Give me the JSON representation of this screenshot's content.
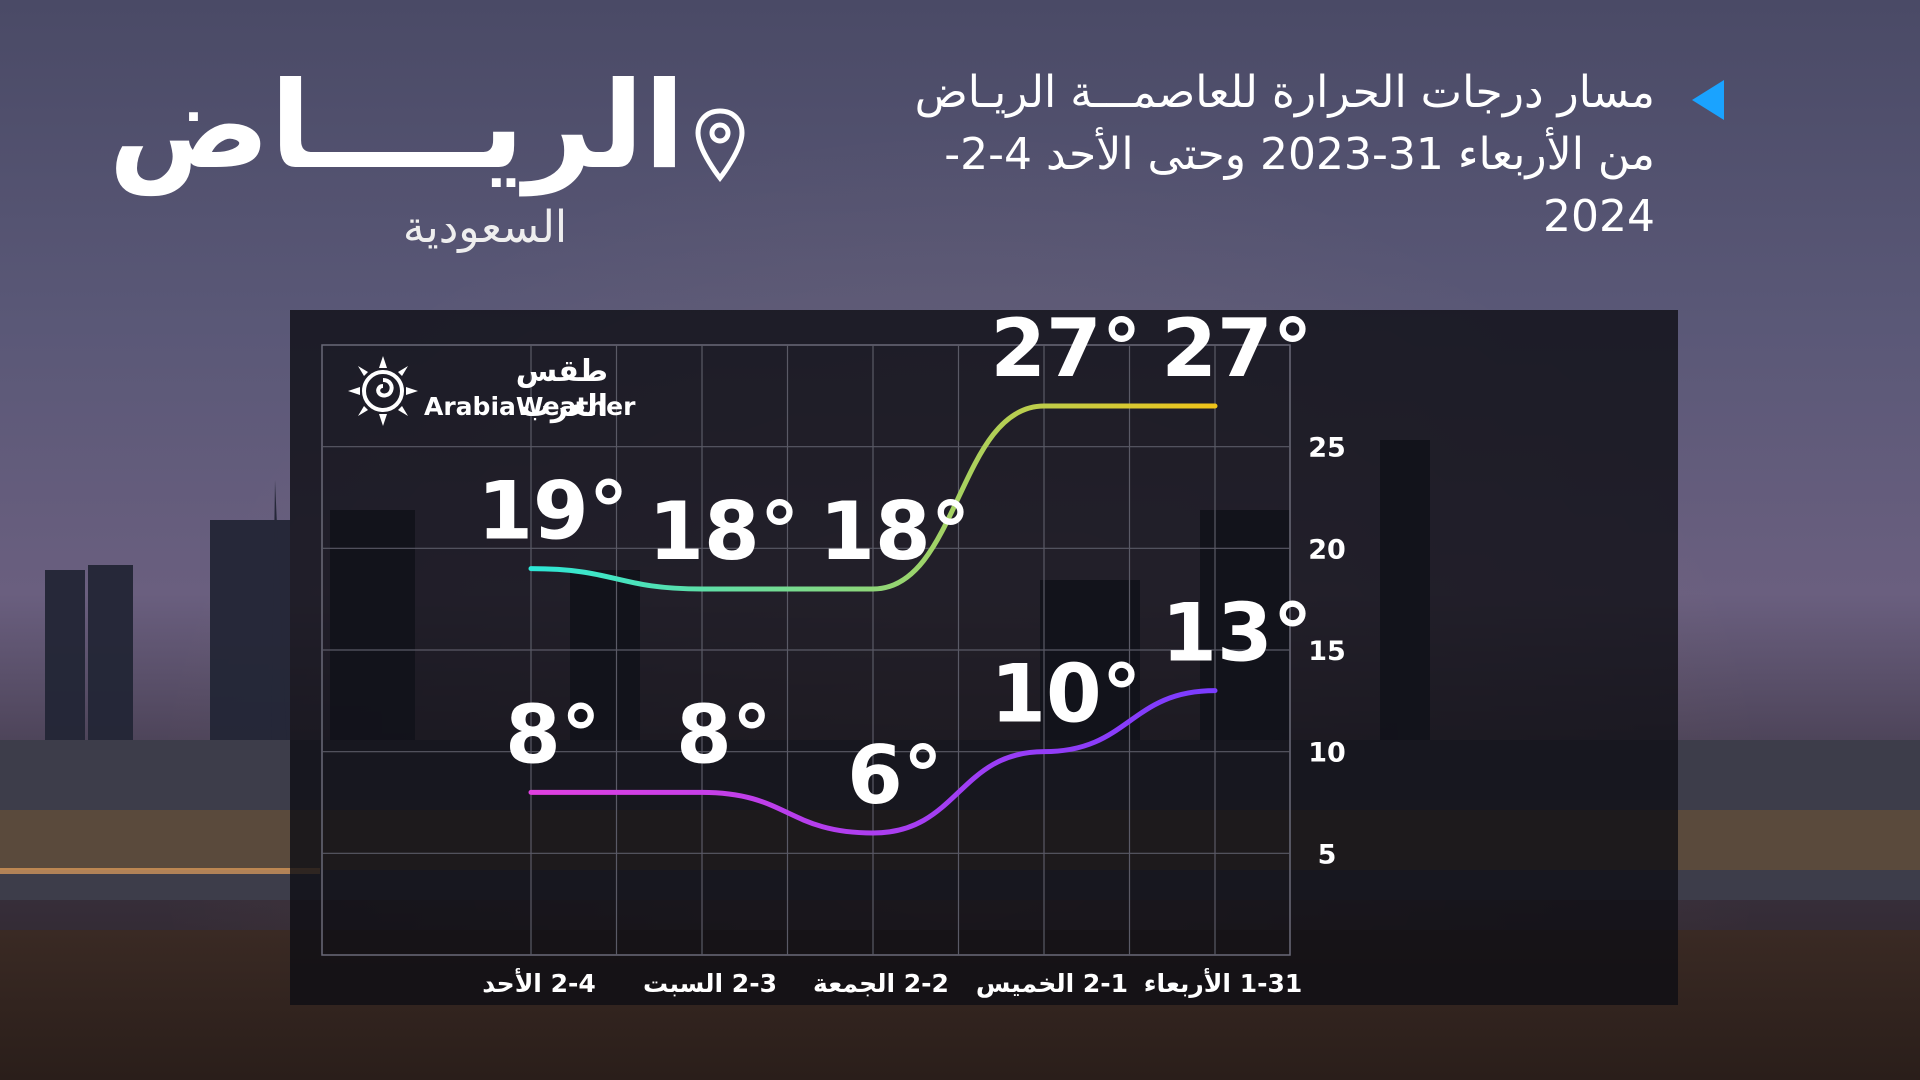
{
  "header": {
    "headline": "مسار درجات الحرارة للعاصمـــة الريـاض من الأربعاء 31-2023 وحتى الأحد 4-2-2024",
    "city": "الريــــاض",
    "country": "السعودية"
  },
  "brand": {
    "name_ar": "طقس العرب",
    "name_en": "ArabiaWeather"
  },
  "colors": {
    "accent": "#1aa3ff",
    "max_line_start": "#2de8d8",
    "max_line_end": "#f0c419",
    "min_line_start": "#e040e0",
    "min_line_end": "#7a3cff"
  },
  "chart_data": {
    "type": "line",
    "categories": [
      "2-4 الأحد",
      "2-3 السبت",
      "2-2 الجمعة",
      "2-1 الخميس",
      "1-31 الأربعاء"
    ],
    "series": [
      {
        "values": [
          19,
          18,
          18,
          27,
          27
        ]
      },
      {
        "values": [
          8,
          8,
          6,
          10,
          13
        ]
      }
    ],
    "value_labels": [
      [
        "19°",
        "18°",
        "18°",
        "27°",
        "27°"
      ],
      [
        "8°",
        "8°",
        "6°",
        "10°",
        "13°"
      ]
    ],
    "yticks": [
      "25",
      "20",
      "15",
      "10",
      "5"
    ],
    "ylim": [
      0,
      30
    ],
    "y_axis_position": "right",
    "grid": true
  }
}
